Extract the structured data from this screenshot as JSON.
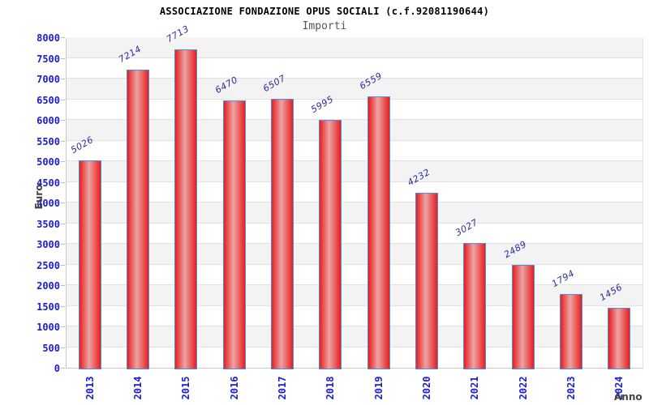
{
  "header": {
    "title": "ASSOCIAZIONE FONDAZIONE OPUS SOCIALI (c.f.92081190644)",
    "subtitle": "Importi"
  },
  "chart_data": {
    "type": "bar",
    "title": "ASSOCIAZIONE FONDAZIONE OPUS SOCIALI (c.f.92081190644)",
    "subtitle": "Importi",
    "xlabel": "Anno",
    "ylabel": "Euro",
    "categories": [
      "2013",
      "2014",
      "2015",
      "2016",
      "2017",
      "2018",
      "2019",
      "2020",
      "2021",
      "2022",
      "2023",
      "2024"
    ],
    "values": [
      5026,
      7214,
      7713,
      6470,
      6507,
      5995,
      6559,
      4232,
      3027,
      2489,
      1794,
      1456
    ],
    "ylim": [
      0,
      8000
    ],
    "ytick_step": 500,
    "ytick_labels": [
      "0",
      "500",
      "1000",
      "1500",
      "2000",
      "2500",
      "3000",
      "3500",
      "4000",
      "4500",
      "5000",
      "5500",
      "6000",
      "6500",
      "7000",
      "7500",
      "8000"
    ],
    "grid": "horizontal",
    "legend": null,
    "colors": {
      "bar_border": "#4a90e2",
      "bar_gradient_edge": "#e81e1e",
      "bar_gradient_mid": "#eda3a3",
      "value_label": "#2b2b9b",
      "tick_label": "#1c1cd2",
      "axis_title": "#444444",
      "band_gray": "#f3f3f3",
      "band_white": "#ffffff",
      "gridline": "#e2e2e2",
      "title": "#000000",
      "subtitle": "#555555"
    }
  }
}
